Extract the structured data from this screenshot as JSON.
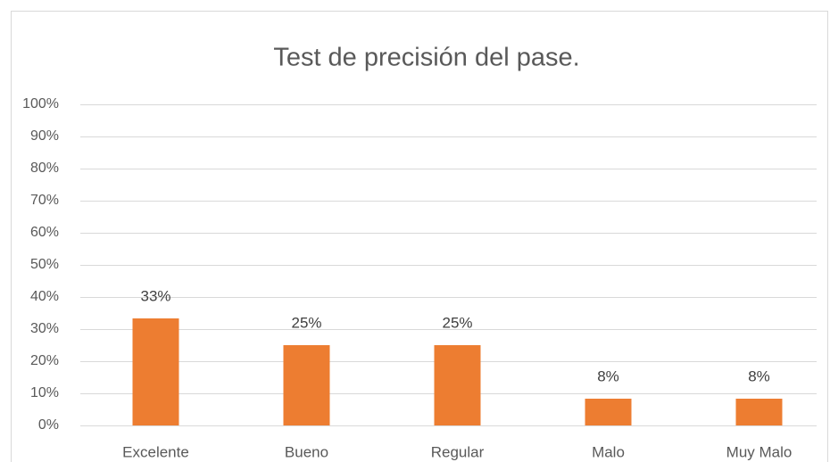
{
  "chart_data": {
    "type": "bar",
    "title": "Test de precisión del pase.",
    "categories": [
      "Excelente",
      "Bueno",
      "Regular",
      "Malo",
      "Muy Malo"
    ],
    "values": [
      33.33,
      25,
      25,
      8.33,
      8.33
    ],
    "value_labels": [
      "33%",
      "25%",
      "25%",
      "8%",
      "8%"
    ],
    "color": "#ed7d31",
    "ylim": [
      0,
      100
    ],
    "yticks": [
      {
        "value": 0,
        "label": "0%"
      },
      {
        "value": 10,
        "label": "10%"
      },
      {
        "value": 20,
        "label": "20%"
      },
      {
        "value": 30,
        "label": "30%"
      },
      {
        "value": 40,
        "label": "40%"
      },
      {
        "value": 50,
        "label": "50%"
      },
      {
        "value": 60,
        "label": "60%"
      },
      {
        "value": 70,
        "label": "70%"
      },
      {
        "value": 80,
        "label": "80%"
      },
      {
        "value": 90,
        "label": "90%"
      },
      {
        "value": 100,
        "label": "100%"
      }
    ],
    "grid": true
  }
}
